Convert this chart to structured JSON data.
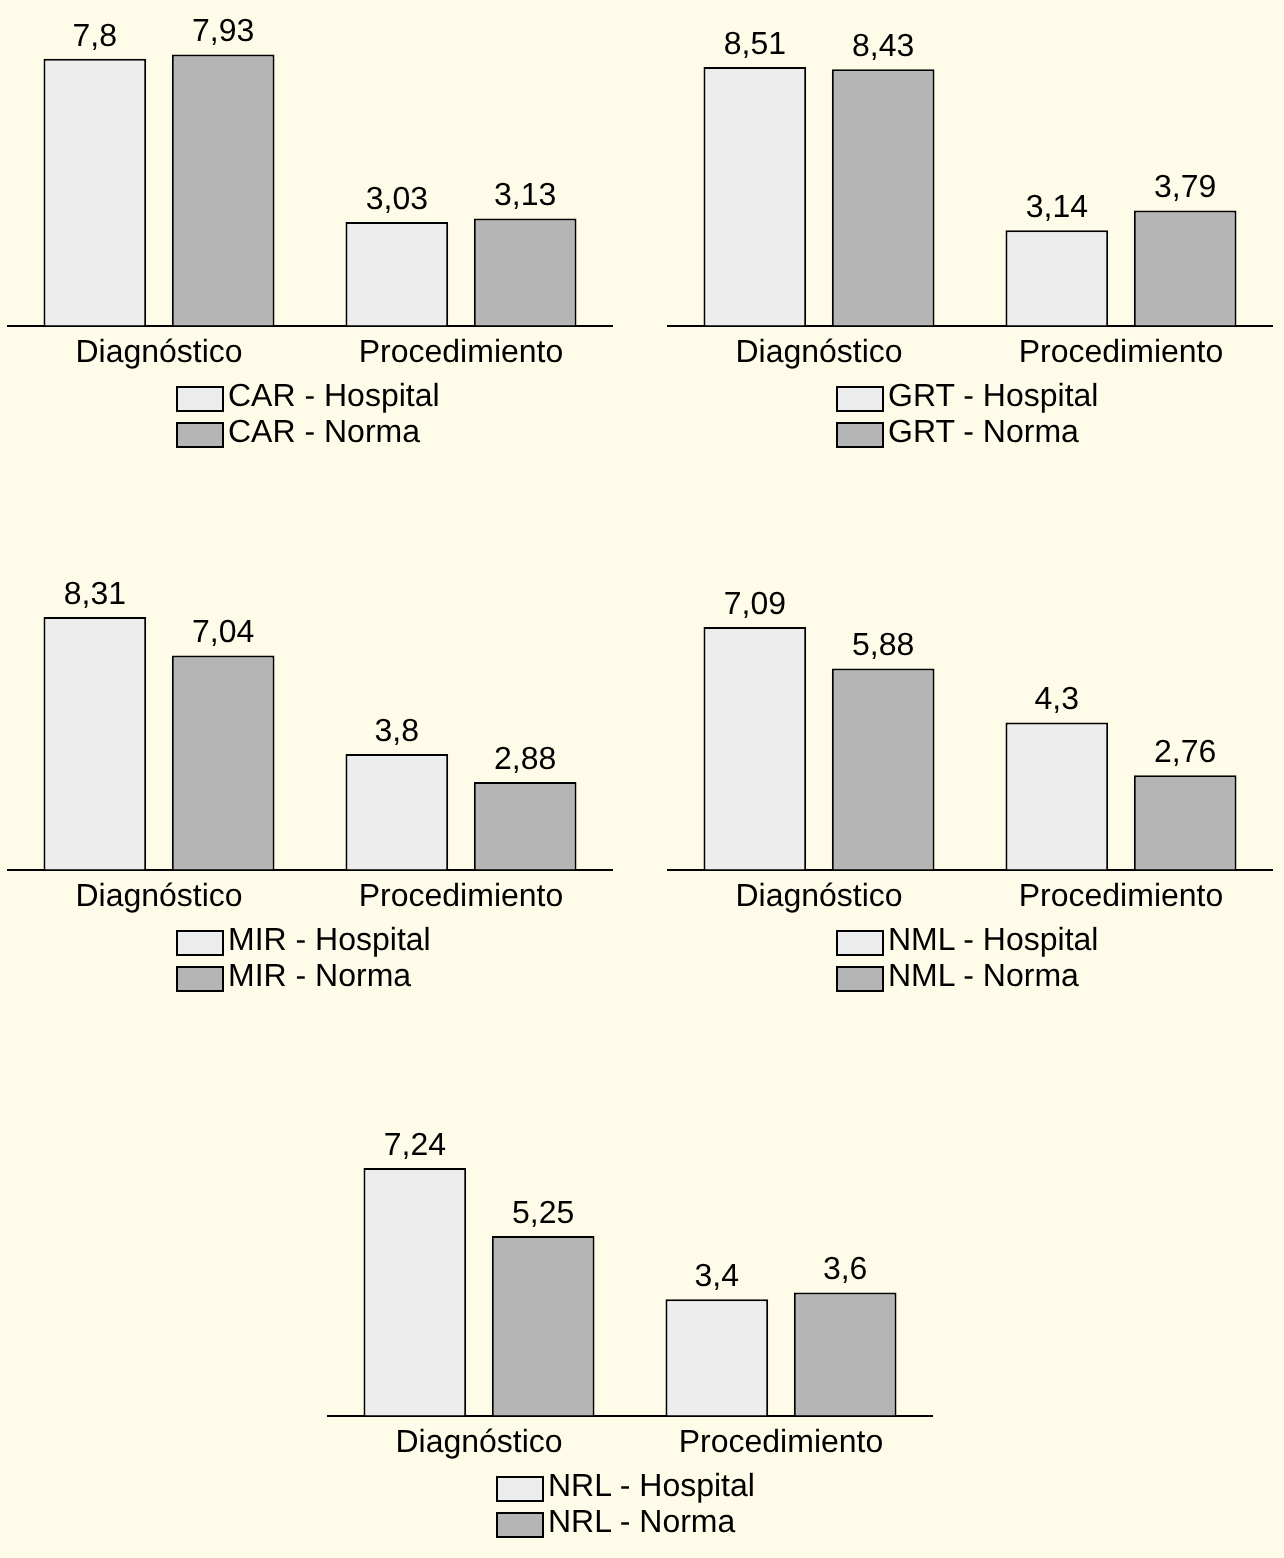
{
  "chart_data": [
    {
      "type": "bar",
      "categories": [
        "Diagnóstico",
        "Procedimiento"
      ],
      "legend": "bottom",
      "tick_labels": "x",
      "grid": false,
      "series": [
        {
          "name": "CAR - Hospital",
          "color": "#ededed",
          "values": [
            7.8,
            3.03
          ],
          "value_labels": [
            "7,8",
            "3,03"
          ]
        },
        {
          "name": "CAR - Norma",
          "color": "#b5b5b5",
          "values": [
            7.93,
            3.13
          ],
          "value_labels": [
            "7,93",
            "3,13"
          ]
        }
      ]
    },
    {
      "type": "bar",
      "categories": [
        "Diagnóstico",
        "Procedimiento"
      ],
      "legend": "bottom",
      "tick_labels": "x",
      "grid": false,
      "series": [
        {
          "name": "GRT - Hospital",
          "color": "#ededed",
          "values": [
            8.51,
            3.14
          ],
          "value_labels": [
            "8,51",
            "3,14"
          ]
        },
        {
          "name": "GRT - Norma",
          "color": "#b5b5b5",
          "values": [
            8.43,
            3.79
          ],
          "value_labels": [
            "8,43",
            "3,79"
          ]
        }
      ]
    },
    {
      "type": "bar",
      "categories": [
        "Diagnóstico",
        "Procedimiento"
      ],
      "legend": "bottom",
      "tick_labels": "x",
      "grid": false,
      "series": [
        {
          "name": "MIR - Hospital",
          "color": "#ededed",
          "values": [
            8.31,
            3.8
          ],
          "value_labels": [
            "8,31",
            "3,8"
          ]
        },
        {
          "name": "MIR - Norma",
          "color": "#b5b5b5",
          "values": [
            7.04,
            2.88
          ],
          "value_labels": [
            "7,04",
            "2,88"
          ]
        }
      ]
    },
    {
      "type": "bar",
      "categories": [
        "Diagnóstico",
        "Procedimiento"
      ],
      "legend": "bottom",
      "tick_labels": "x",
      "grid": false,
      "series": [
        {
          "name": "NML - Hospital",
          "color": "#ededed",
          "values": [
            7.09,
            4.3
          ],
          "value_labels": [
            "7,09",
            "4,3"
          ]
        },
        {
          "name": "NML - Norma",
          "color": "#b5b5b5",
          "values": [
            5.88,
            2.76
          ],
          "value_labels": [
            "5,88",
            "2,76"
          ]
        }
      ]
    },
    {
      "type": "bar",
      "categories": [
        "Diagnóstico",
        "Procedimiento"
      ],
      "legend": "bottom",
      "tick_labels": "x",
      "grid": false,
      "series": [
        {
          "name": "NRL - Hospital",
          "color": "#ededed",
          "values": [
            7.24,
            3.4
          ],
          "value_labels": [
            "7,24",
            "3,4"
          ]
        },
        {
          "name": "NRL - Norma",
          "color": "#b5b5b5",
          "values": [
            5.25,
            3.6
          ],
          "value_labels": [
            "5,25",
            "3,6"
          ]
        }
      ]
    }
  ]
}
